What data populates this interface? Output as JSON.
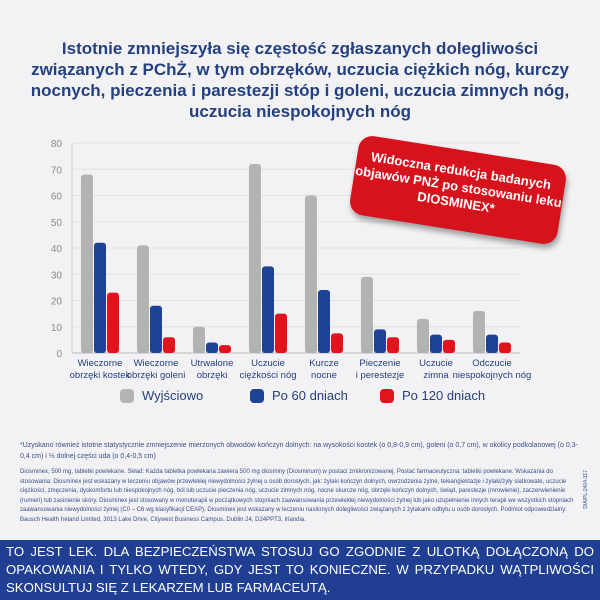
{
  "title": "Istotnie zmniejszyła się częstość zgłaszanych dolegliwości związanych z PChŻ, w tym obrzęków, uczucia ciężkich nóg, kurczy nocnych, pieczenia i parestezji stóp i goleni, uczucia zimnych nóg, uczucia niespokojnych nóg",
  "badge": {
    "text": "Widoczna redukcja badanych objawów PNŻ po stosowaniu leku DIOSMINEX*"
  },
  "chart_data": {
    "type": "bar",
    "categories": [
      [
        "Wieczorne",
        "obrzęki kostek"
      ],
      [
        "Wieczorne",
        "obrzęki goleni"
      ],
      [
        "Utrwalone",
        "obrzęki"
      ],
      [
        "Uczucie",
        "ciężkości nóg"
      ],
      [
        "Kurcze",
        "nocne"
      ],
      [
        "Pieczenie",
        "i perestezje"
      ],
      [
        "Uczucie",
        "zimna"
      ],
      [
        "Odczucie",
        "niespokojnych nóg"
      ]
    ],
    "series": [
      {
        "name": "Wyjściowo",
        "color": "#b3b3b3",
        "values": [
          68,
          41,
          10,
          72,
          60,
          29,
          13,
          16
        ]
      },
      {
        "name": "Po 60 dniach",
        "color": "#1d4296",
        "values": [
          42,
          18,
          4,
          33,
          24,
          9,
          7,
          7
        ]
      },
      {
        "name": "Po 120 dniach",
        "color": "#e1141e",
        "values": [
          23,
          6,
          3,
          15,
          7.5,
          6,
          5,
          4
        ]
      }
    ],
    "yticks": [
      0,
      10,
      20,
      30,
      40,
      50,
      60,
      70,
      80
    ],
    "ylim": [
      0,
      80
    ],
    "grid": true,
    "legend": "bottom"
  },
  "footnote": "*Uzyskano również istotne statystycznie zmniejszenie mierzonych obwodów kończyn dolnych: na wysokości kostek (o 0,8-0,9 cm), goleni (o 0,7 cm), w okolicy podkolanowej (o 0,3-0,4 cm) i ⅓ dolnej części uda (o 0,4-0,5 cm)",
  "product_info": "Diosminex, 500 mg, tabletki powlekane. Skład: Każda tabletka powlekana zawiera 500 mg diosminy (Diosminum) w postaci zmikronizowanej. Postać farmaceutyczna: tabletki powlekane. Wskazania do stosowania: Diosminex jest wskazany w leczeniu objawów przewlekłej niewydolności żylnej u osób dorosłych, jak: żylaki kończyn dolnych, owrzodzenia żylne, teleangiektazje i żylaki/żyły siatkowate, uczucie ciężkości, zmęczenia, dyskomfortu lub niespokojnych nóg, ból lub uczucie pieczenia nóg, uczucie zimnych nóg, nocne skurcze nóg, obrzęki kończyn dolnych, świąd, parestezje (mrowienie), zaczerwienienie (rumień) lub zasinienie skóry. Diosminex jest stosowany w monoterapii w początkowych stopniach zaawansowania przewlekłej niewydolności żylnej lub jako uzupełnienie innych terapii we wszystkich stopniach zaawansowania niewydolności żylnej (C0 – C6 wg klasyfikacji CEAP). Diosminex jest wskazany w leczeniu naslionych dolegliwości związanych z żylakami odbytu u osób dorosłych. Podmiot odpowiedzialny: Bausch Health Ireland Limited, 3013 Lake Drive, Citywest Business Campus, Dublin 24, D24PPT3, Irlandia.",
  "code": "DIA/PL-2404-317",
  "warning": "TO JEST LEK. DLA BEZPIECZEŃSTWA STOSUJ GO ZGODNIE Z ULOTKĄ DOŁĄCZONĄ DO OPAKOWANIA I TYLKO WTEDY, GDY JEST TO KONIECZNE. W PRZYPADKU WĄTPLIWOŚCI SKONSULTUJ SIĘ Z LEKARZEM LUB FARMACEUTĄ."
}
